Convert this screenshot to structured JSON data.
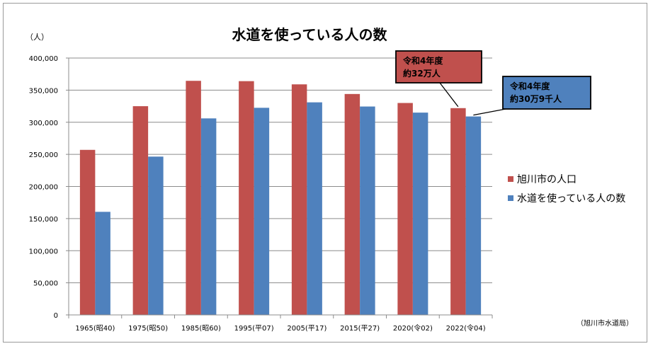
{
  "chart_data": {
    "type": "bar",
    "title": "水道を使っている人の数",
    "unit_label": "（人）",
    "categories": [
      "1965(昭40)",
      "1975(昭50)",
      "1985(昭60)",
      "1995(平07)",
      "2005(平17)",
      "2015(平27)",
      "2020(令02)",
      "2022(令04)"
    ],
    "series": [
      {
        "name": "旭川市の人口",
        "color": "#c0504d",
        "values": [
          257000,
          325000,
          364500,
          364000,
          359000,
          344000,
          330000,
          322000
        ]
      },
      {
        "name": "水道を使っている人の数",
        "color": "#4f81bd",
        "values": [
          160500,
          246500,
          306000,
          322500,
          331000,
          324500,
          315000,
          309000
        ]
      }
    ],
    "ylim": [
      0,
      400000
    ],
    "yticks": [
      0,
      50000,
      100000,
      150000,
      200000,
      250000,
      300000,
      350000,
      400000
    ],
    "ytick_labels": [
      "0",
      "50,000",
      "100,000",
      "150,000",
      "200,000",
      "250,000",
      "300,000",
      "350,000",
      "400,000"
    ],
    "grid": true,
    "legend_position": "right",
    "annotations": [
      {
        "series": 0,
        "category": 7,
        "lines": [
          "令和4年度",
          "約32万人"
        ],
        "bg": "#c0504d"
      },
      {
        "series": 1,
        "category": 7,
        "lines": [
          "令和4年度",
          "約30万9千人"
        ],
        "bg": "#4f81bd"
      }
    ],
    "source": "（旭川市水道局）"
  }
}
